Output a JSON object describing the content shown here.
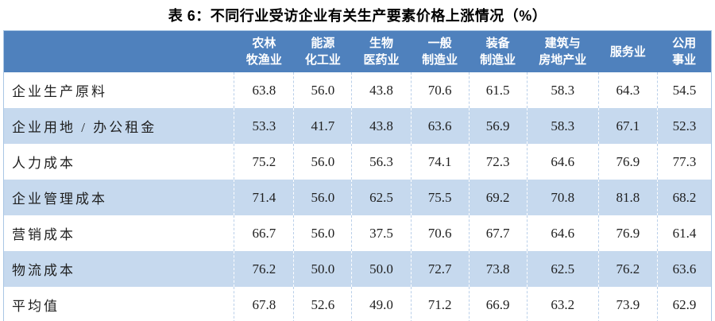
{
  "title": "表 6：不同行业受访企业有关生产要素价格上涨情况（%）",
  "colors": {
    "header_bg": "#4f81bd",
    "header_text": "#ffffff",
    "row_alt_bg": "#c6d9ee",
    "table_border": "#a9c6e4",
    "separator_on_white": "#b9cfe9",
    "separator_on_alt": "#ffffff",
    "body_text": "#1f1f1f",
    "title_text": "#000000"
  },
  "table": {
    "corner_label": "",
    "columns": [
      {
        "label": "农林\n牧渔业"
      },
      {
        "label": "能源\n化工业"
      },
      {
        "label": "生物\n医药业"
      },
      {
        "label": "一般\n制造业"
      },
      {
        "label": "装备\n制造业"
      },
      {
        "label": "建筑与\n房地产业"
      },
      {
        "label": "服务业"
      },
      {
        "label": "公用\n事业"
      }
    ],
    "rows": [
      {
        "label": "企业生产原料",
        "values": [
          "63.8",
          "56.0",
          "43.8",
          "70.6",
          "61.5",
          "58.3",
          "64.3",
          "54.5"
        ]
      },
      {
        "label": "企业用地 / 办公租金",
        "values": [
          "53.3",
          "41.7",
          "43.8",
          "63.6",
          "56.9",
          "58.3",
          "67.1",
          "52.3"
        ]
      },
      {
        "label": "人力成本",
        "values": [
          "75.2",
          "56.0",
          "56.3",
          "74.1",
          "72.3",
          "64.6",
          "76.9",
          "77.3"
        ]
      },
      {
        "label": "企业管理成本",
        "values": [
          "71.4",
          "56.0",
          "62.5",
          "75.5",
          "69.2",
          "70.8",
          "81.8",
          "68.2"
        ]
      },
      {
        "label": "营销成本",
        "values": [
          "66.7",
          "56.0",
          "37.5",
          "70.6",
          "67.7",
          "64.6",
          "76.9",
          "61.4"
        ]
      },
      {
        "label": "物流成本",
        "values": [
          "76.2",
          "50.0",
          "50.0",
          "72.7",
          "73.8",
          "62.5",
          "76.2",
          "63.6"
        ]
      },
      {
        "label": "平均值",
        "values": [
          "67.8",
          "52.6",
          "49.0",
          "71.2",
          "66.9",
          "63.2",
          "73.9",
          "62.9"
        ]
      }
    ]
  }
}
